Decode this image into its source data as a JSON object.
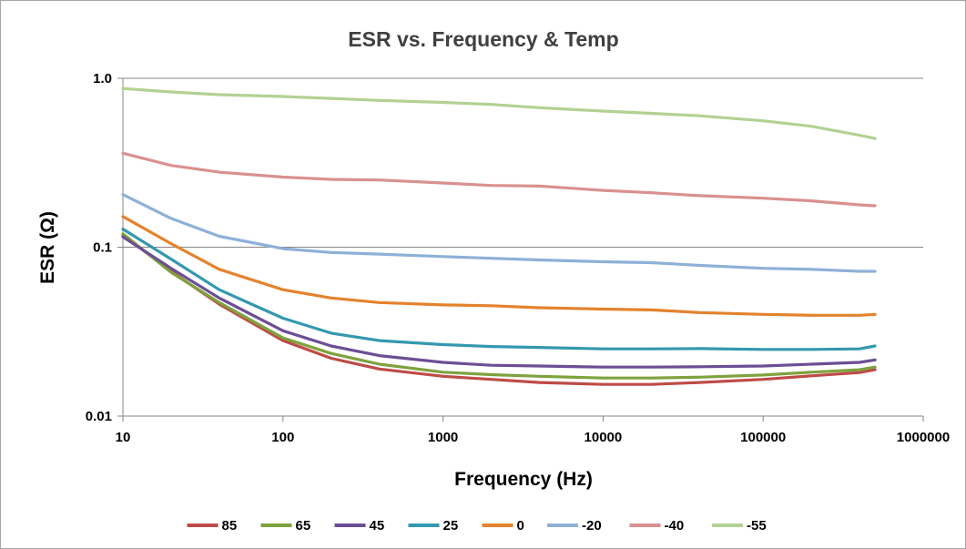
{
  "chart_data": {
    "type": "line",
    "title": "ESR vs. Frequency & Temp",
    "xlabel": "Frequency (Hz)",
    "ylabel": "ESR (Ω)",
    "x_scale": "log",
    "y_scale": "log",
    "xlim": [
      10,
      1000000
    ],
    "ylim": [
      0.01,
      1.0
    ],
    "x_ticks": [
      "10",
      "100",
      "1000",
      "10000",
      "100000",
      "1000000"
    ],
    "y_ticks": [
      "0.01",
      "0.1",
      "1.0"
    ],
    "grid": "horizontal",
    "legend": "bottom",
    "x": [
      10,
      20,
      40,
      100,
      200,
      400,
      1000,
      2000,
      4000,
      10000,
      20000,
      40000,
      100000,
      200000,
      400000,
      500000
    ],
    "series": [
      {
        "name": "85",
        "color": "#be4b48",
        "values": [
          0.118,
          0.072,
          0.046,
          0.028,
          0.022,
          0.019,
          0.0172,
          0.0165,
          0.0158,
          0.0154,
          0.0154,
          0.0158,
          0.0165,
          0.0173,
          0.0181,
          0.0188
        ]
      },
      {
        "name": "65",
        "color": "#7ea23d",
        "values": [
          0.12,
          0.071,
          0.047,
          0.029,
          0.0235,
          0.0203,
          0.0182,
          0.0176,
          0.0172,
          0.0168,
          0.0168,
          0.017,
          0.0175,
          0.0182,
          0.0188,
          0.0195
        ]
      },
      {
        "name": "45",
        "color": "#6c4e94",
        "values": [
          0.115,
          0.075,
          0.05,
          0.032,
          0.026,
          0.0228,
          0.0208,
          0.02,
          0.0198,
          0.0195,
          0.0195,
          0.0196,
          0.0198,
          0.0203,
          0.0208,
          0.0215
        ]
      },
      {
        "name": "25",
        "color": "#3498ae",
        "values": [
          0.128,
          0.085,
          0.056,
          0.038,
          0.031,
          0.028,
          0.0265,
          0.0258,
          0.0255,
          0.025,
          0.025,
          0.0251,
          0.0248,
          0.0248,
          0.025,
          0.026
        ]
      },
      {
        "name": "0",
        "color": "#e3832d",
        "values": [
          0.152,
          0.105,
          0.074,
          0.056,
          0.05,
          0.047,
          0.0455,
          0.045,
          0.0438,
          0.043,
          0.0425,
          0.041,
          0.04,
          0.0395,
          0.0395,
          0.04
        ]
      },
      {
        "name": "-20",
        "color": "#8eb0d8",
        "values": [
          0.205,
          0.148,
          0.116,
          0.098,
          0.093,
          0.091,
          0.088,
          0.086,
          0.084,
          0.082,
          0.081,
          0.078,
          0.075,
          0.074,
          0.072,
          0.072
        ]
      },
      {
        "name": "-40",
        "color": "#d9918f",
        "values": [
          0.36,
          0.305,
          0.278,
          0.26,
          0.252,
          0.25,
          0.24,
          0.232,
          0.23,
          0.217,
          0.21,
          0.202,
          0.195,
          0.188,
          0.178,
          0.176
        ]
      },
      {
        "name": "-55",
        "color": "#b2d193",
        "values": [
          0.87,
          0.83,
          0.8,
          0.78,
          0.76,
          0.74,
          0.72,
          0.7,
          0.67,
          0.64,
          0.62,
          0.6,
          0.56,
          0.52,
          0.46,
          0.44
        ]
      }
    ]
  }
}
